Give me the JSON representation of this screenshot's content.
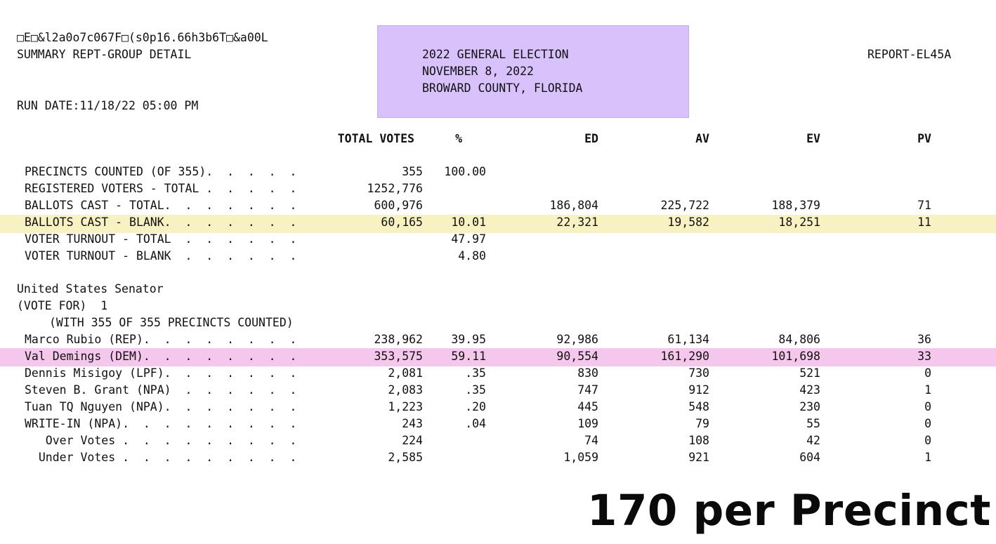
{
  "header": {
    "code_line": "□E□&l2a0o7c067F□(s0p16.66h3b6T□&a00L",
    "summary": "SUMMARY REPT-GROUP DETAIL",
    "run_date": "RUN DATE:11/18/22 05:00 PM",
    "report_id": "REPORT-EL45A",
    "election_title": "2022 GENERAL ELECTION",
    "election_date": "NOVEMBER 8, 2022",
    "county": "BROWARD COUNTY, FLORIDA",
    "highlight_color": "#d9c2fb"
  },
  "columns": {
    "total": "TOTAL VOTES",
    "pct": "%",
    "ed": "ED",
    "av": "AV",
    "ev": "EV",
    "pv": "PV"
  },
  "summary_rows": [
    {
      "label": "PRECINCTS COUNTED (OF 355).  .  .  .  .",
      "total": "355",
      "pct": "100.00",
      "ed": "",
      "av": "",
      "ev": "",
      "pv": ""
    },
    {
      "label": "REGISTERED VOTERS - TOTAL .  .  .  .  .",
      "total": "1252,776",
      "pct": "",
      "ed": "",
      "av": "",
      "ev": "",
      "pv": ""
    },
    {
      "label": "BALLOTS CAST - TOTAL.  .  .  .  .  .  .",
      "total": "600,976",
      "pct": "",
      "ed": "186,804",
      "av": "225,722",
      "ev": "188,379",
      "pv": "71"
    },
    {
      "label": "BALLOTS CAST - BLANK.  .  .  .  .  .  .",
      "total": "60,165",
      "pct": "10.01",
      "ed": "22,321",
      "av": "19,582",
      "ev": "18,251",
      "pv": "11"
    },
    {
      "label": "VOTER TURNOUT - TOTAL  .  .  .  .  .  .",
      "total": "",
      "pct": "47.97",
      "ed": "",
      "av": "",
      "ev": "",
      "pv": ""
    },
    {
      "label": "VOTER TURNOUT - BLANK  .  .  .  .  .  .",
      "total": "",
      "pct": "4.80",
      "ed": "",
      "av": "",
      "ev": "",
      "pv": ""
    }
  ],
  "race": {
    "title": "United States Senator",
    "vote_for": "(VOTE FOR)  1",
    "precincts_note": "(WITH 355 OF 355 PRECINCTS COUNTED)"
  },
  "candidate_rows": [
    {
      "label": "Marco Rubio (REP).  .  .  .  .  .  .  .",
      "total": "238,962",
      "pct": "39.95",
      "ed": "92,986",
      "av": "61,134",
      "ev": "84,806",
      "pv": "36"
    },
    {
      "label": "Val Demings (DEM).  .  .  .  .  .  .  .",
      "total": "353,575",
      "pct": "59.11",
      "ed": "90,554",
      "av": "161,290",
      "ev": "101,698",
      "pv": "33"
    },
    {
      "label": "Dennis Misigoy (LPF).  .  .  .  .  .  .",
      "total": "2,081",
      "pct": ".35",
      "ed": "830",
      "av": "730",
      "ev": "521",
      "pv": "0"
    },
    {
      "label": "Steven B. Grant (NPA)  .  .  .  .  .  .",
      "total": "2,083",
      "pct": ".35",
      "ed": "747",
      "av": "912",
      "ev": "423",
      "pv": "1"
    },
    {
      "label": "Tuan TQ Nguyen (NPA).  .  .  .  .  .  .",
      "total": "1,223",
      "pct": ".20",
      "ed": "445",
      "av": "548",
      "ev": "230",
      "pv": "0"
    },
    {
      "label": "WRITE-IN (NPA).  .  .  .  .  .  .  .  .",
      "total": "243",
      "pct": ".04",
      "ed": "109",
      "av": "79",
      "ev": "55",
      "pv": "0"
    },
    {
      "label": "   Over Votes .  .  .  .  .  .  .  .  .",
      "total": "224",
      "pct": "",
      "ed": "74",
      "av": "108",
      "ev": "42",
      "pv": "0"
    },
    {
      "label": "  Under Votes .  .  .  .  .  .  .  .  .",
      "total": "2,585",
      "pct": "",
      "ed": "1,059",
      "av": "921",
      "ev": "604",
      "pv": "1"
    }
  ],
  "highlights": {
    "blank_row_color": "#f8f1c2",
    "demings_row_color": "#f6c7ec"
  },
  "caption": "170 per Precinct"
}
